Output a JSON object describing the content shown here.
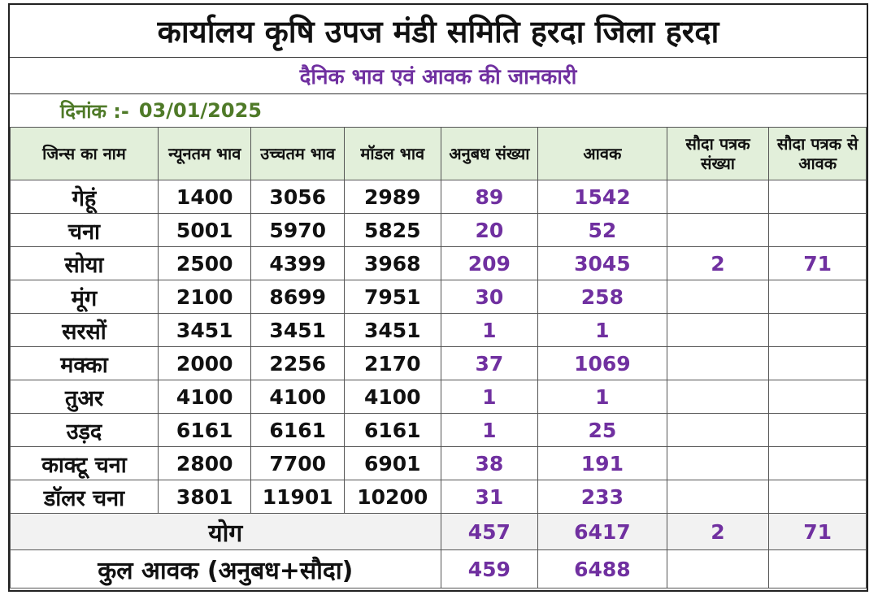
{
  "title": "कार्यालय कृषि उपज मंडी समिति हरदा जिला हरदा",
  "subtitle": "दैनिक भाव एवं आवक की जानकारी",
  "date": {
    "label": "दिनांक :-",
    "value": "03/01/2025"
  },
  "columns": [
    "जिन्स का नाम",
    "न्यूनतम भाव",
    "उच्चतम भाव",
    "मॉडल भाव",
    "अनुबध संख्या",
    "आवक",
    "सौदा पत्रक संख्या",
    "सौदा पत्रक से आवक"
  ],
  "rows": [
    [
      "गेहूं",
      "1400",
      "3056",
      "2989",
      "89",
      "1542",
      "",
      ""
    ],
    [
      "चना",
      "5001",
      "5970",
      "5825",
      "20",
      "52",
      "",
      ""
    ],
    [
      "सोया",
      "2500",
      "4399",
      "3968",
      "209",
      "3045",
      "2",
      "71"
    ],
    [
      "मूंग",
      "2100",
      "8699",
      "7951",
      "30",
      "258",
      "",
      ""
    ],
    [
      "सरसों",
      "3451",
      "3451",
      "3451",
      "1",
      "1",
      "",
      ""
    ],
    [
      "मक्का",
      "2000",
      "2256",
      "2170",
      "37",
      "1069",
      "",
      ""
    ],
    [
      "तुअर",
      "4100",
      "4100",
      "4100",
      "1",
      "1",
      "",
      ""
    ],
    [
      "उड़द",
      "6161",
      "6161",
      "6161",
      "1",
      "25",
      "",
      ""
    ],
    [
      "काक्टू चना",
      "2800",
      "7700",
      "6901",
      "38",
      "191",
      "",
      ""
    ],
    [
      "डॉलर चना",
      "3801",
      "11901",
      "10200",
      "31",
      "233",
      "",
      ""
    ]
  ],
  "total": {
    "label": "योग",
    "anubandh": "457",
    "awak": "6417",
    "sauda_sankhya": "2",
    "sauda_awak": "71"
  },
  "grand_total": {
    "label": "कुल आवक (अनुबध+सौदा)",
    "anubandh": "459",
    "awak": "6488",
    "sauda_sankhya": "",
    "sauda_awak": ""
  }
}
